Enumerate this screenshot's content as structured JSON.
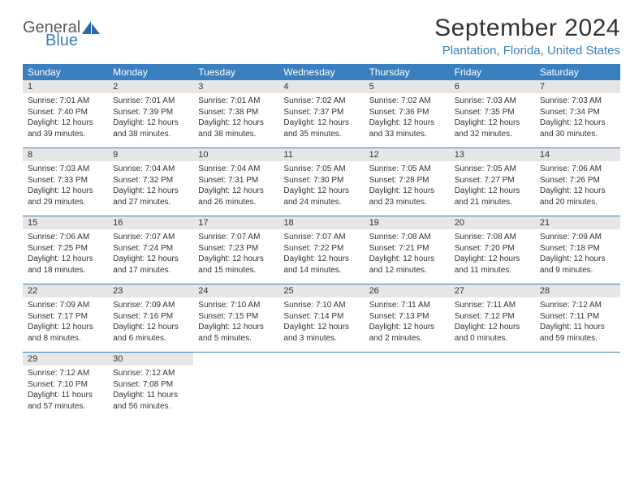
{
  "logo": {
    "word1": "General",
    "word2": "Blue"
  },
  "title": "September 2024",
  "location": "Plantation, Florida, United States",
  "weekdays": [
    "Sunday",
    "Monday",
    "Tuesday",
    "Wednesday",
    "Thursday",
    "Friday",
    "Saturday"
  ],
  "colors": {
    "header_bg": "#3a7fbf",
    "header_text": "#ffffff",
    "daynum_bg": "#e6e6e6",
    "border": "#3a7fbf",
    "logo_gray": "#555b60",
    "logo_blue": "#3a7fbf",
    "body_text": "#333333"
  },
  "days": [
    {
      "n": 1,
      "sunrise": "7:01 AM",
      "sunset": "7:40 PM",
      "daylight": "12 hours and 39 minutes."
    },
    {
      "n": 2,
      "sunrise": "7:01 AM",
      "sunset": "7:39 PM",
      "daylight": "12 hours and 38 minutes."
    },
    {
      "n": 3,
      "sunrise": "7:01 AM",
      "sunset": "7:38 PM",
      "daylight": "12 hours and 38 minutes."
    },
    {
      "n": 4,
      "sunrise": "7:02 AM",
      "sunset": "7:37 PM",
      "daylight": "12 hours and 35 minutes."
    },
    {
      "n": 5,
      "sunrise": "7:02 AM",
      "sunset": "7:36 PM",
      "daylight": "12 hours and 33 minutes."
    },
    {
      "n": 6,
      "sunrise": "7:03 AM",
      "sunset": "7:35 PM",
      "daylight": "12 hours and 32 minutes."
    },
    {
      "n": 7,
      "sunrise": "7:03 AM",
      "sunset": "7:34 PM",
      "daylight": "12 hours and 30 minutes."
    },
    {
      "n": 8,
      "sunrise": "7:03 AM",
      "sunset": "7:33 PM",
      "daylight": "12 hours and 29 minutes."
    },
    {
      "n": 9,
      "sunrise": "7:04 AM",
      "sunset": "7:32 PM",
      "daylight": "12 hours and 27 minutes."
    },
    {
      "n": 10,
      "sunrise": "7:04 AM",
      "sunset": "7:31 PM",
      "daylight": "12 hours and 26 minutes."
    },
    {
      "n": 11,
      "sunrise": "7:05 AM",
      "sunset": "7:30 PM",
      "daylight": "12 hours and 24 minutes."
    },
    {
      "n": 12,
      "sunrise": "7:05 AM",
      "sunset": "7:28 PM",
      "daylight": "12 hours and 23 minutes."
    },
    {
      "n": 13,
      "sunrise": "7:05 AM",
      "sunset": "7:27 PM",
      "daylight": "12 hours and 21 minutes."
    },
    {
      "n": 14,
      "sunrise": "7:06 AM",
      "sunset": "7:26 PM",
      "daylight": "12 hours and 20 minutes."
    },
    {
      "n": 15,
      "sunrise": "7:06 AM",
      "sunset": "7:25 PM",
      "daylight": "12 hours and 18 minutes."
    },
    {
      "n": 16,
      "sunrise": "7:07 AM",
      "sunset": "7:24 PM",
      "daylight": "12 hours and 17 minutes."
    },
    {
      "n": 17,
      "sunrise": "7:07 AM",
      "sunset": "7:23 PM",
      "daylight": "12 hours and 15 minutes."
    },
    {
      "n": 18,
      "sunrise": "7:07 AM",
      "sunset": "7:22 PM",
      "daylight": "12 hours and 14 minutes."
    },
    {
      "n": 19,
      "sunrise": "7:08 AM",
      "sunset": "7:21 PM",
      "daylight": "12 hours and 12 minutes."
    },
    {
      "n": 20,
      "sunrise": "7:08 AM",
      "sunset": "7:20 PM",
      "daylight": "12 hours and 11 minutes."
    },
    {
      "n": 21,
      "sunrise": "7:09 AM",
      "sunset": "7:18 PM",
      "daylight": "12 hours and 9 minutes."
    },
    {
      "n": 22,
      "sunrise": "7:09 AM",
      "sunset": "7:17 PM",
      "daylight": "12 hours and 8 minutes."
    },
    {
      "n": 23,
      "sunrise": "7:09 AM",
      "sunset": "7:16 PM",
      "daylight": "12 hours and 6 minutes."
    },
    {
      "n": 24,
      "sunrise": "7:10 AM",
      "sunset": "7:15 PM",
      "daylight": "12 hours and 5 minutes."
    },
    {
      "n": 25,
      "sunrise": "7:10 AM",
      "sunset": "7:14 PM",
      "daylight": "12 hours and 3 minutes."
    },
    {
      "n": 26,
      "sunrise": "7:11 AM",
      "sunset": "7:13 PM",
      "daylight": "12 hours and 2 minutes."
    },
    {
      "n": 27,
      "sunrise": "7:11 AM",
      "sunset": "7:12 PM",
      "daylight": "12 hours and 0 minutes."
    },
    {
      "n": 28,
      "sunrise": "7:12 AM",
      "sunset": "7:11 PM",
      "daylight": "11 hours and 59 minutes."
    },
    {
      "n": 29,
      "sunrise": "7:12 AM",
      "sunset": "7:10 PM",
      "daylight": "11 hours and 57 minutes."
    },
    {
      "n": 30,
      "sunrise": "7:12 AM",
      "sunset": "7:08 PM",
      "daylight": "11 hours and 56 minutes."
    }
  ],
  "layout": {
    "first_weekday_index": 0,
    "total_cells": 35
  },
  "labels": {
    "sunrise_prefix": "Sunrise: ",
    "sunset_prefix": "Sunset: ",
    "daylight_prefix": "Daylight: "
  }
}
